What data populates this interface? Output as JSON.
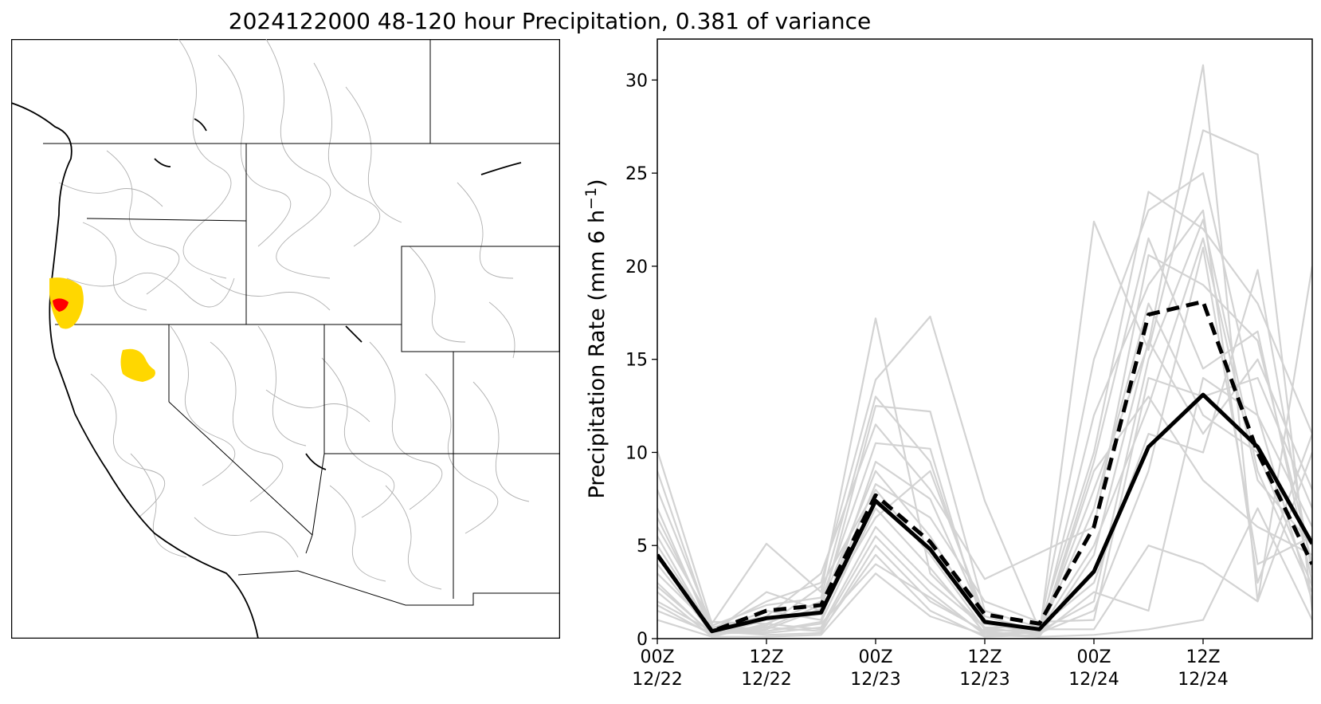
{
  "title": "2024122000 48-120 hour Precipitation, 0.381 of variance",
  "colors": {
    "member": "#d3d3d3",
    "mean": "#000000",
    "basin_high": "#ff0000",
    "basin_mid": "#ffd700",
    "basin_outline": "#b0b0b0"
  },
  "map": {
    "type": "basin map",
    "highlighted_basins": [
      "yellow",
      "red"
    ]
  },
  "chart_data": {
    "type": "line",
    "title": "",
    "xlabel": "",
    "ylabel": "Precipitation Rate (mm 6 h",
    "ylabel_sup": "−1",
    "ylabel_end": ")",
    "ylim": [
      0,
      32.2
    ],
    "xlim": [
      0,
      18
    ],
    "yticks": [
      0,
      5,
      10,
      15,
      20,
      25,
      30
    ],
    "xticks": [
      {
        "x": 0,
        "line1": "00Z",
        "line2": "12/22"
      },
      {
        "x": 3,
        "line1": "12Z",
        "line2": "12/22"
      },
      {
        "x": 6,
        "line1": "00Z",
        "line2": "12/23"
      },
      {
        "x": 9,
        "line1": "12Z",
        "line2": "12/23"
      },
      {
        "x": 12,
        "line1": "00Z",
        "line2": "12/24"
      },
      {
        "x": 15,
        "line1": "12Z",
        "line2": "12/24"
      }
    ],
    "x": [
      0,
      1.5,
      3,
      4.5,
      6,
      7.5,
      9,
      10.5,
      12,
      13.5,
      15,
      16.5,
      18
    ],
    "solid_series": [
      4.5,
      0.4,
      1.1,
      1.4,
      7.4,
      4.8,
      0.9,
      0.5,
      3.6,
      10.3,
      13.1,
      10.3,
      5.1
    ],
    "dashed_series": [
      4.5,
      0.4,
      1.5,
      1.8,
      7.7,
      5.2,
      1.3,
      0.8,
      6.0,
      17.4,
      18.1,
      10.0,
      4.0
    ],
    "members": [
      [
        10.1,
        0.8,
        5.1,
        2.5,
        17.2,
        3.5,
        0.6,
        0.2,
        22.4,
        15.5,
        27.3,
        26.0,
        1.5
      ],
      [
        9.0,
        0.5,
        2.0,
        3.0,
        13.9,
        17.3,
        7.4,
        0.5,
        15.0,
        23.0,
        25.0,
        12.0,
        2.0
      ],
      [
        8.0,
        0.7,
        1.8,
        2.2,
        13.0,
        9.5,
        0.8,
        0.3,
        8.0,
        15.8,
        30.8,
        2.0,
        20.0
      ],
      [
        7.0,
        0.3,
        2.5,
        1.5,
        12.5,
        12.2,
        1.5,
        0.6,
        10.0,
        24.0,
        22.0,
        18.0,
        11.0
      ],
      [
        6.5,
        0.6,
        1.2,
        3.5,
        11.5,
        8.0,
        3.2,
        4.6,
        6.0,
        20.6,
        19.0,
        16.0,
        4.0
      ],
      [
        6.0,
        0.9,
        0.8,
        2.0,
        10.5,
        10.2,
        0.4,
        0.1,
        9.5,
        21.5,
        14.5,
        16.5,
        3.0
      ],
      [
        5.5,
        0.4,
        1.5,
        1.0,
        9.5,
        7.5,
        1.0,
        0.2,
        12.0,
        19.0,
        23.0,
        3.0,
        11.0
      ],
      [
        5.0,
        0.5,
        0.6,
        1.8,
        9.0,
        5.5,
        0.8,
        0.4,
        2.0,
        15.0,
        22.5,
        9.0,
        2.5
      ],
      [
        4.5,
        0.2,
        1.0,
        1.3,
        8.3,
        6.5,
        2.0,
        0.9,
        1.0,
        14.0,
        13.0,
        14.0,
        7.0
      ],
      [
        4.0,
        0.3,
        0.7,
        2.8,
        8.0,
        4.5,
        0.5,
        0.3,
        7.0,
        18.0,
        12.0,
        10.0,
        2.8
      ],
      [
        3.5,
        0.6,
        0.4,
        0.9,
        7.0,
        3.8,
        0.3,
        0.1,
        4.5,
        16.0,
        11.0,
        15.0,
        8.0
      ],
      [
        3.0,
        0.2,
        0.5,
        1.6,
        6.5,
        9.0,
        1.2,
        0.4,
        5.0,
        12.5,
        21.5,
        8.5,
        5.0
      ],
      [
        2.8,
        0.3,
        0.3,
        0.6,
        6.0,
        3.0,
        0.6,
        0.6,
        3.0,
        11.0,
        10.0,
        19.8,
        3.5
      ],
      [
        2.5,
        0.1,
        0.8,
        0.5,
        5.5,
        2.5,
        0.2,
        0.1,
        9.0,
        13.0,
        8.5,
        6.0,
        4.5
      ],
      [
        2.0,
        0.4,
        0.2,
        0.3,
        5.0,
        2.0,
        0.4,
        0.5,
        0.5,
        5.0,
        4.0,
        2.0,
        10.0
      ],
      [
        1.8,
        0.2,
        0.6,
        0.4,
        4.5,
        1.5,
        0.1,
        0.2,
        2.5,
        1.5,
        14.0,
        12.0,
        6.0
      ],
      [
        1.5,
        0.3,
        0.4,
        0.8,
        4.0,
        2.2,
        0.3,
        0.3,
        1.5,
        9.0,
        21.0,
        4.0,
        5.5
      ],
      [
        1.0,
        0.1,
        0.1,
        0.2,
        3.5,
        1.2,
        0.2,
        0.1,
        0.2,
        0.5,
        1.0,
        7.0,
        1.0
      ]
    ]
  }
}
